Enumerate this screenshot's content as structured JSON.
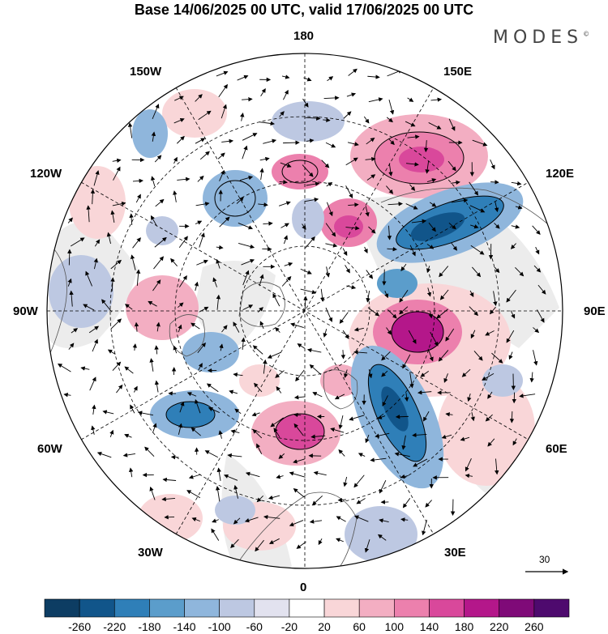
{
  "title": "Base 14/06/2025 00 UTC, valid 17/06/2025 00 UTC",
  "brand": "MODES",
  "brand_mark": "©",
  "longitude_labels": {
    "top": "180",
    "bottom": "0",
    "left": "90W",
    "right": "90E",
    "upper_left_1": "150W",
    "upper_left_2": "120W",
    "upper_right_1": "150E",
    "upper_right_2": "120E",
    "lower_left_1": "60W",
    "lower_left_2": "30W",
    "lower_right_1": "60E",
    "lower_right_2": "30E"
  },
  "reference_vector": "30",
  "colorbar": {
    "ticks": [
      "-260",
      "-220",
      "-180",
      "-140",
      "-100",
      "-60",
      "-20",
      "20",
      "60",
      "100",
      "140",
      "180",
      "220",
      "260"
    ],
    "colors": [
      "#0d3d63",
      "#11558a",
      "#2f7fb8",
      "#5b9dcb",
      "#8fb6dc",
      "#bdc8e2",
      "#e2e2ef",
      "#ffffff",
      "#f9d6d8",
      "#f3aec2",
      "#ec80ad",
      "#d9489b",
      "#b4178a",
      "#7f0a78",
      "#4e0a6e"
    ]
  },
  "colors": {
    "coast": "#555555",
    "grid": "#000000",
    "land_shade": "#ececec"
  }
}
